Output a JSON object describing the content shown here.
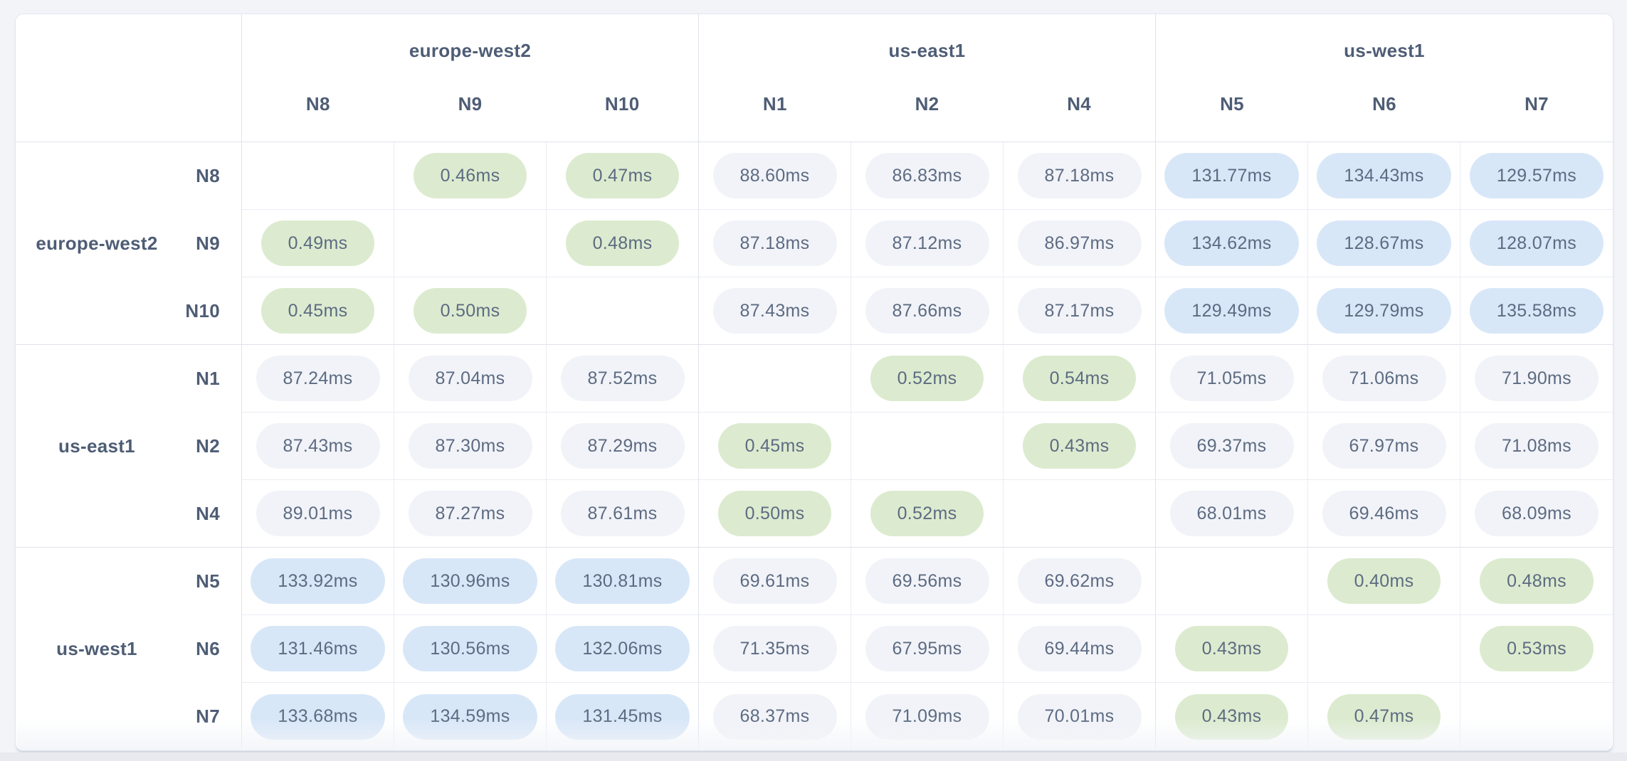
{
  "colors": {
    "page_background": "#f2f4f8",
    "bottom_band": "#e8eaef",
    "card_background": "#ffffff",
    "tone_low_background": "#dcebcf",
    "tone_mid_background": "#f1f3f8",
    "tone_high_background": "#d8e7f8",
    "value_text": "#5d6b82",
    "header_text": "#4e5d75"
  },
  "matrix": {
    "unit": "ms",
    "column_groups": [
      {
        "region": "europe-west2",
        "nodes": [
          "N8",
          "N9",
          "N10"
        ]
      },
      {
        "region": "us-east1",
        "nodes": [
          "N1",
          "N2",
          "N4"
        ]
      },
      {
        "region": "us-west1",
        "nodes": [
          "N5",
          "N6",
          "N7"
        ]
      }
    ],
    "row_groups": [
      {
        "region": "europe-west2",
        "rows": [
          {
            "node": "N8",
            "cells": [
              null,
              {
                "value": "0.46ms",
                "tone": "low"
              },
              {
                "value": "0.47ms",
                "tone": "low"
              },
              {
                "value": "88.60ms",
                "tone": "mid"
              },
              {
                "value": "86.83ms",
                "tone": "mid"
              },
              {
                "value": "87.18ms",
                "tone": "mid"
              },
              {
                "value": "131.77ms",
                "tone": "high"
              },
              {
                "value": "134.43ms",
                "tone": "high"
              },
              {
                "value": "129.57ms",
                "tone": "high"
              }
            ]
          },
          {
            "node": "N9",
            "cells": [
              {
                "value": "0.49ms",
                "tone": "low"
              },
              null,
              {
                "value": "0.48ms",
                "tone": "low"
              },
              {
                "value": "87.18ms",
                "tone": "mid"
              },
              {
                "value": "87.12ms",
                "tone": "mid"
              },
              {
                "value": "86.97ms",
                "tone": "mid"
              },
              {
                "value": "134.62ms",
                "tone": "high"
              },
              {
                "value": "128.67ms",
                "tone": "high"
              },
              {
                "value": "128.07ms",
                "tone": "high"
              }
            ]
          },
          {
            "node": "N10",
            "cells": [
              {
                "value": "0.45ms",
                "tone": "low"
              },
              {
                "value": "0.50ms",
                "tone": "low"
              },
              null,
              {
                "value": "87.43ms",
                "tone": "mid"
              },
              {
                "value": "87.66ms",
                "tone": "mid"
              },
              {
                "value": "87.17ms",
                "tone": "mid"
              },
              {
                "value": "129.49ms",
                "tone": "high"
              },
              {
                "value": "129.79ms",
                "tone": "high"
              },
              {
                "value": "135.58ms",
                "tone": "high"
              }
            ]
          }
        ]
      },
      {
        "region": "us-east1",
        "rows": [
          {
            "node": "N1",
            "cells": [
              {
                "value": "87.24ms",
                "tone": "mid"
              },
              {
                "value": "87.04ms",
                "tone": "mid"
              },
              {
                "value": "87.52ms",
                "tone": "mid"
              },
              null,
              {
                "value": "0.52ms",
                "tone": "low"
              },
              {
                "value": "0.54ms",
                "tone": "low"
              },
              {
                "value": "71.05ms",
                "tone": "mid"
              },
              {
                "value": "71.06ms",
                "tone": "mid"
              },
              {
                "value": "71.90ms",
                "tone": "mid"
              }
            ]
          },
          {
            "node": "N2",
            "cells": [
              {
                "value": "87.43ms",
                "tone": "mid"
              },
              {
                "value": "87.30ms",
                "tone": "mid"
              },
              {
                "value": "87.29ms",
                "tone": "mid"
              },
              {
                "value": "0.45ms",
                "tone": "low"
              },
              null,
              {
                "value": "0.43ms",
                "tone": "low"
              },
              {
                "value": "69.37ms",
                "tone": "mid"
              },
              {
                "value": "67.97ms",
                "tone": "mid"
              },
              {
                "value": "71.08ms",
                "tone": "mid"
              }
            ]
          },
          {
            "node": "N4",
            "cells": [
              {
                "value": "89.01ms",
                "tone": "mid"
              },
              {
                "value": "87.27ms",
                "tone": "mid"
              },
              {
                "value": "87.61ms",
                "tone": "mid"
              },
              {
                "value": "0.50ms",
                "tone": "low"
              },
              {
                "value": "0.52ms",
                "tone": "low"
              },
              null,
              {
                "value": "68.01ms",
                "tone": "mid"
              },
              {
                "value": "69.46ms",
                "tone": "mid"
              },
              {
                "value": "68.09ms",
                "tone": "mid"
              }
            ]
          }
        ]
      },
      {
        "region": "us-west1",
        "rows": [
          {
            "node": "N5",
            "cells": [
              {
                "value": "133.92ms",
                "tone": "high"
              },
              {
                "value": "130.96ms",
                "tone": "high"
              },
              {
                "value": "130.81ms",
                "tone": "high"
              },
              {
                "value": "69.61ms",
                "tone": "mid"
              },
              {
                "value": "69.56ms",
                "tone": "mid"
              },
              {
                "value": "69.62ms",
                "tone": "mid"
              },
              null,
              {
                "value": "0.40ms",
                "tone": "low"
              },
              {
                "value": "0.48ms",
                "tone": "low"
              }
            ]
          },
          {
            "node": "N6",
            "cells": [
              {
                "value": "131.46ms",
                "tone": "high"
              },
              {
                "value": "130.56ms",
                "tone": "high"
              },
              {
                "value": "132.06ms",
                "tone": "high"
              },
              {
                "value": "71.35ms",
                "tone": "mid"
              },
              {
                "value": "67.95ms",
                "tone": "mid"
              },
              {
                "value": "69.44ms",
                "tone": "mid"
              },
              {
                "value": "0.43ms",
                "tone": "low"
              },
              null,
              {
                "value": "0.53ms",
                "tone": "low"
              }
            ]
          },
          {
            "node": "N7",
            "cells": [
              {
                "value": "133.68ms",
                "tone": "high"
              },
              {
                "value": "134.59ms",
                "tone": "high"
              },
              {
                "value": "131.45ms",
                "tone": "high"
              },
              {
                "value": "68.37ms",
                "tone": "mid"
              },
              {
                "value": "71.09ms",
                "tone": "mid"
              },
              {
                "value": "70.01ms",
                "tone": "mid"
              },
              {
                "value": "0.43ms",
                "tone": "low"
              },
              {
                "value": "0.47ms",
                "tone": "low"
              },
              null
            ]
          }
        ]
      }
    ]
  }
}
